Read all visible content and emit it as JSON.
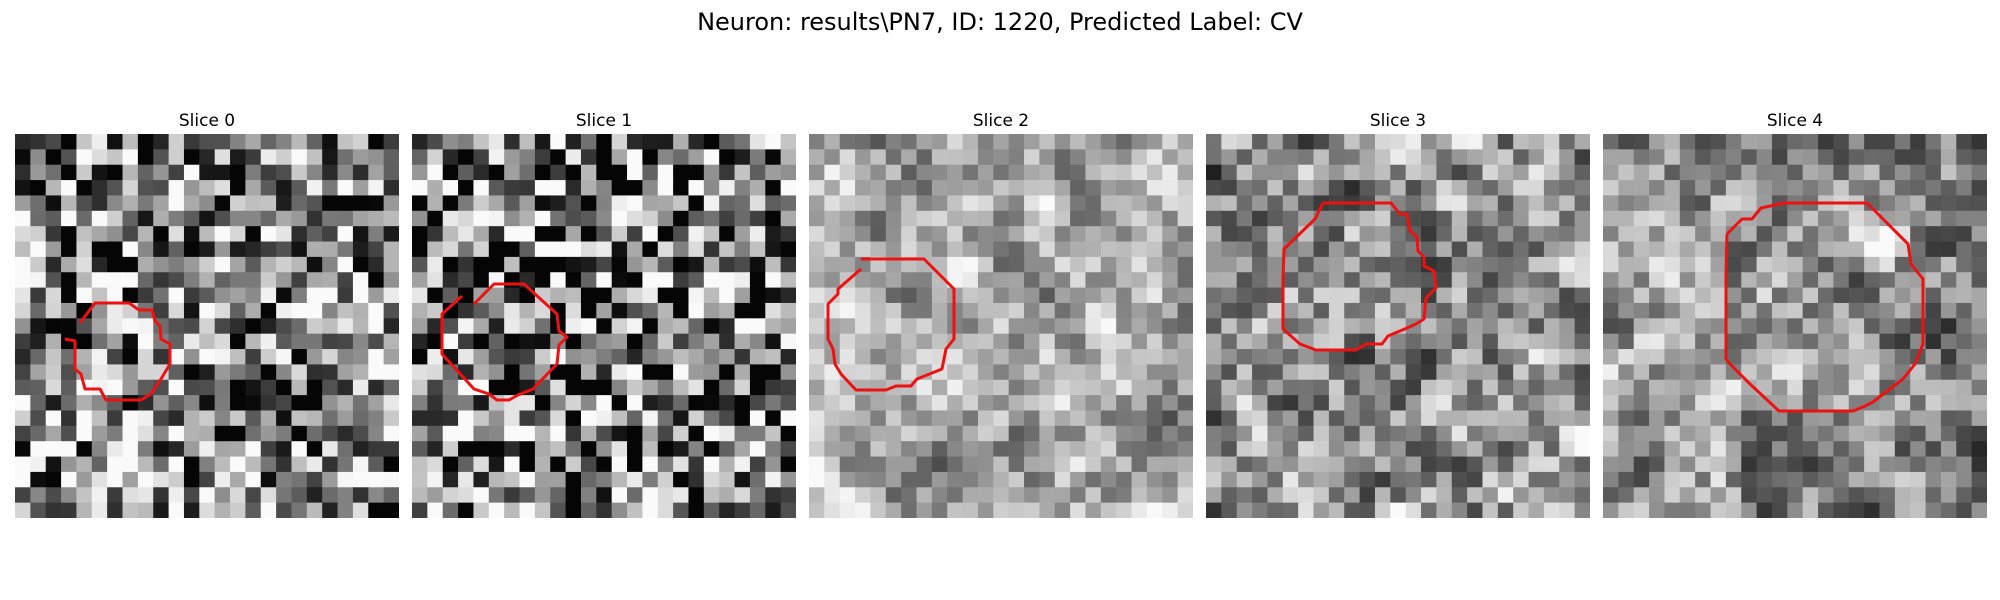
{
  "figure": {
    "title": "Neuron: results\\PN7, ID: 1220, Predicted Label: CV"
  },
  "panels": [
    {
      "title": "Slice 0",
      "seed": 11,
      "smooth": 0.15,
      "mean": 0.5,
      "contrast": 1.35
    },
    {
      "title": "Slice 1",
      "seed": 23,
      "smooth": 0.1,
      "mean": 0.48,
      "contrast": 1.45
    },
    {
      "title": "Slice 2",
      "seed": 37,
      "smooth": 0.65,
      "mean": 0.66,
      "contrast": 1.15
    },
    {
      "title": "Slice 3",
      "seed": 41,
      "smooth": 0.55,
      "mean": 0.56,
      "contrast": 1.25
    },
    {
      "title": "Slice 4",
      "seed": 53,
      "smooth": 0.6,
      "mean": 0.58,
      "contrast": 1.2
    }
  ],
  "outline_color": "#ee1111"
}
